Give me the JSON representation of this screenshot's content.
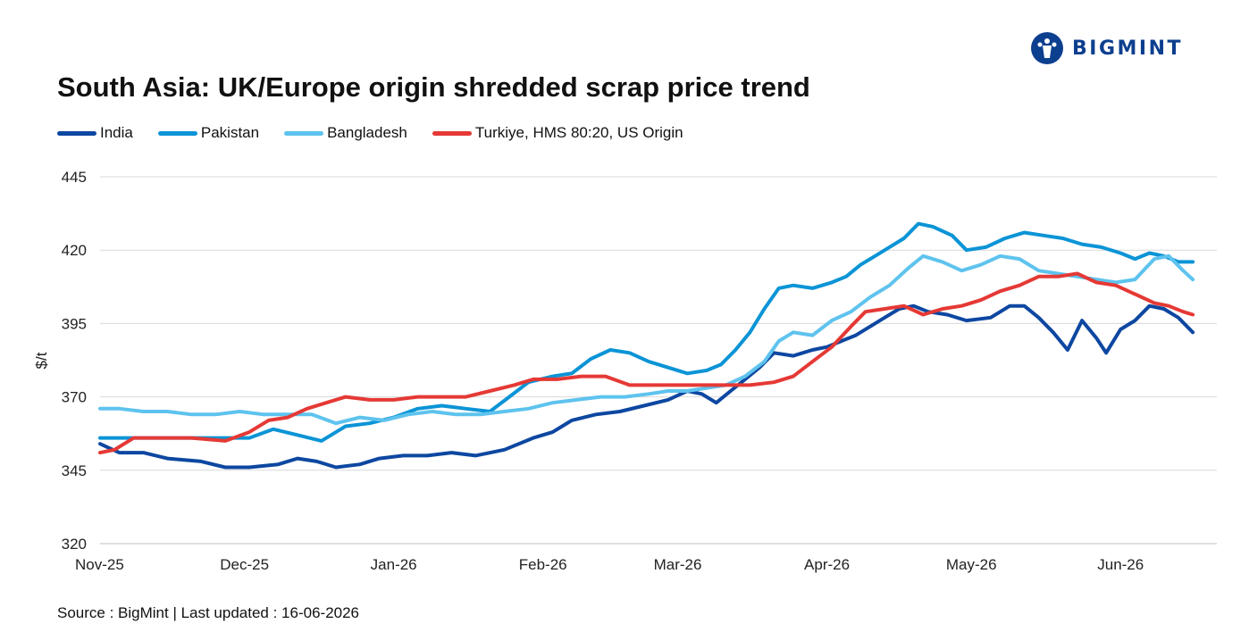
{
  "brand": {
    "logo_text": "BIGMINT",
    "logo_color": "#0d3f8f"
  },
  "source_note": "Source : BigMint | Last updated : 16-06-2026",
  "chart_data": {
    "type": "line",
    "title": "South Asia: UK/Europe origin shredded scrap price trend",
    "xlabel": "",
    "ylabel": "$/t",
    "ylim": [
      320,
      445
    ],
    "yticks": [
      "445",
      "420",
      "395",
      "370",
      "345",
      "320"
    ],
    "xticks": [
      "Nov-25",
      "Dec-25",
      "Jan-26",
      "Feb-26",
      "Mar-26",
      "Apr-26",
      "May-26",
      "Jun-26"
    ],
    "grid": true,
    "legend": "top-left",
    "colors": {
      "India": "#0d47a1",
      "Pakistan": "#0b94d6",
      "Bangladesh": "#5ec3ee",
      "Turkiye": "#e53935"
    },
    "series": [
      {
        "name": "India",
        "color": "#0d47a1",
        "points": [
          [
            "2025-11-01",
            354
          ],
          [
            "2025-11-05",
            351
          ],
          [
            "2025-11-10",
            351
          ],
          [
            "2025-11-15",
            349
          ],
          [
            "2025-11-22",
            348
          ],
          [
            "2025-11-27",
            346
          ],
          [
            "2025-12-02",
            346
          ],
          [
            "2025-12-08",
            347
          ],
          [
            "2025-12-12",
            349
          ],
          [
            "2025-12-16",
            348
          ],
          [
            "2025-12-20",
            346
          ],
          [
            "2025-12-25",
            347
          ],
          [
            "2025-12-29",
            349
          ],
          [
            "2026-01-03",
            350
          ],
          [
            "2026-01-08",
            350
          ],
          [
            "2026-01-13",
            351
          ],
          [
            "2026-01-18",
            350
          ],
          [
            "2026-01-24",
            352
          ],
          [
            "2026-01-30",
            356
          ],
          [
            "2026-02-03",
            358
          ],
          [
            "2026-02-07",
            362
          ],
          [
            "2026-02-12",
            364
          ],
          [
            "2026-02-17",
            365
          ],
          [
            "2026-02-22",
            367
          ],
          [
            "2026-02-27",
            369
          ],
          [
            "2026-03-03",
            372
          ],
          [
            "2026-03-06",
            371
          ],
          [
            "2026-03-09",
            368
          ],
          [
            "2026-03-12",
            372
          ],
          [
            "2026-03-15",
            376
          ],
          [
            "2026-03-18",
            380
          ],
          [
            "2026-03-21",
            385
          ],
          [
            "2026-03-25",
            384
          ],
          [
            "2026-03-29",
            386
          ],
          [
            "2026-04-01",
            387
          ],
          [
            "2026-04-04",
            389
          ],
          [
            "2026-04-07",
            391
          ],
          [
            "2026-04-10",
            394
          ],
          [
            "2026-04-13",
            397
          ],
          [
            "2026-04-16",
            400
          ],
          [
            "2026-04-19",
            401
          ],
          [
            "2026-04-22",
            399
          ],
          [
            "2026-04-26",
            398
          ],
          [
            "2026-04-30",
            396
          ],
          [
            "2026-05-05",
            397
          ],
          [
            "2026-05-09",
            401
          ],
          [
            "2026-05-12",
            401
          ],
          [
            "2026-05-15",
            397
          ],
          [
            "2026-05-18",
            392
          ],
          [
            "2026-05-21",
            386
          ],
          [
            "2026-05-24",
            396
          ],
          [
            "2026-05-27",
            390
          ],
          [
            "2026-05-29",
            385
          ],
          [
            "2026-06-01",
            393
          ],
          [
            "2026-06-04",
            396
          ],
          [
            "2026-06-07",
            401
          ],
          [
            "2026-06-10",
            400
          ],
          [
            "2026-06-13",
            397
          ],
          [
            "2026-06-16",
            392
          ]
        ]
      },
      {
        "name": "Pakistan",
        "color": "#0b94d6",
        "points": [
          [
            "2025-11-01",
            356
          ],
          [
            "2025-11-05",
            356
          ],
          [
            "2025-11-10",
            356
          ],
          [
            "2025-11-15",
            356
          ],
          [
            "2025-11-22",
            356
          ],
          [
            "2025-11-27",
            356
          ],
          [
            "2025-12-02",
            356
          ],
          [
            "2025-12-07",
            359
          ],
          [
            "2025-12-12",
            357
          ],
          [
            "2025-12-17",
            355
          ],
          [
            "2025-12-22",
            360
          ],
          [
            "2025-12-27",
            361
          ],
          [
            "2026-01-01",
            363
          ],
          [
            "2026-01-06",
            366
          ],
          [
            "2026-01-11",
            367
          ],
          [
            "2026-01-16",
            366
          ],
          [
            "2026-01-21",
            365
          ],
          [
            "2026-01-25",
            370
          ],
          [
            "2026-01-29",
            375
          ],
          [
            "2026-02-03",
            377
          ],
          [
            "2026-02-07",
            378
          ],
          [
            "2026-02-11",
            383
          ],
          [
            "2026-02-15",
            386
          ],
          [
            "2026-02-19",
            385
          ],
          [
            "2026-02-23",
            382
          ],
          [
            "2026-02-27",
            380
          ],
          [
            "2026-03-03",
            378
          ],
          [
            "2026-03-07",
            379
          ],
          [
            "2026-03-10",
            381
          ],
          [
            "2026-03-13",
            386
          ],
          [
            "2026-03-16",
            392
          ],
          [
            "2026-03-19",
            400
          ],
          [
            "2026-03-22",
            407
          ],
          [
            "2026-03-25",
            408
          ],
          [
            "2026-03-29",
            407
          ],
          [
            "2026-04-02",
            409
          ],
          [
            "2026-04-05",
            411
          ],
          [
            "2026-04-08",
            415
          ],
          [
            "2026-04-11",
            418
          ],
          [
            "2026-04-14",
            421
          ],
          [
            "2026-04-17",
            424
          ],
          [
            "2026-04-20",
            429
          ],
          [
            "2026-04-23",
            428
          ],
          [
            "2026-04-27",
            425
          ],
          [
            "2026-04-30",
            420
          ],
          [
            "2026-05-04",
            421
          ],
          [
            "2026-05-08",
            424
          ],
          [
            "2026-05-12",
            426
          ],
          [
            "2026-05-16",
            425
          ],
          [
            "2026-05-20",
            424
          ],
          [
            "2026-05-24",
            422
          ],
          [
            "2026-05-28",
            421
          ],
          [
            "2026-06-01",
            419
          ],
          [
            "2026-06-04",
            417
          ],
          [
            "2026-06-07",
            419
          ],
          [
            "2026-06-10",
            418
          ],
          [
            "2026-06-13",
            416
          ],
          [
            "2026-06-16",
            416
          ]
        ]
      },
      {
        "name": "Bangladesh",
        "color": "#5ec3ee",
        "points": [
          [
            "2025-11-01",
            366
          ],
          [
            "2025-11-05",
            366
          ],
          [
            "2025-11-10",
            365
          ],
          [
            "2025-11-15",
            365
          ],
          [
            "2025-11-20",
            364
          ],
          [
            "2025-11-25",
            364
          ],
          [
            "2025-11-30",
            365
          ],
          [
            "2025-12-05",
            364
          ],
          [
            "2025-12-10",
            364
          ],
          [
            "2025-12-15",
            364
          ],
          [
            "2025-12-20",
            361
          ],
          [
            "2025-12-25",
            363
          ],
          [
            "2025-12-30",
            362
          ],
          [
            "2026-01-04",
            364
          ],
          [
            "2026-01-09",
            365
          ],
          [
            "2026-01-14",
            364
          ],
          [
            "2026-01-19",
            364
          ],
          [
            "2026-01-24",
            365
          ],
          [
            "2026-01-29",
            366
          ],
          [
            "2026-02-03",
            368
          ],
          [
            "2026-02-08",
            369
          ],
          [
            "2026-02-13",
            370
          ],
          [
            "2026-02-18",
            370
          ],
          [
            "2026-02-23",
            371
          ],
          [
            "2026-02-27",
            372
          ],
          [
            "2026-03-03",
            372
          ],
          [
            "2026-03-07",
            373
          ],
          [
            "2026-03-11",
            374
          ],
          [
            "2026-03-15",
            377
          ],
          [
            "2026-03-19",
            382
          ],
          [
            "2026-03-22",
            389
          ],
          [
            "2026-03-25",
            392
          ],
          [
            "2026-03-29",
            391
          ],
          [
            "2026-04-02",
            396
          ],
          [
            "2026-04-06",
            399
          ],
          [
            "2026-04-10",
            404
          ],
          [
            "2026-04-14",
            408
          ],
          [
            "2026-04-18",
            414
          ],
          [
            "2026-04-21",
            418
          ],
          [
            "2026-04-25",
            416
          ],
          [
            "2026-04-29",
            413
          ],
          [
            "2026-05-03",
            415
          ],
          [
            "2026-05-07",
            418
          ],
          [
            "2026-05-11",
            417
          ],
          [
            "2026-05-15",
            413
          ],
          [
            "2026-05-19",
            412
          ],
          [
            "2026-05-23",
            411
          ],
          [
            "2026-05-27",
            410
          ],
          [
            "2026-05-31",
            409
          ],
          [
            "2026-06-04",
            410
          ],
          [
            "2026-06-08",
            417
          ],
          [
            "2026-06-11",
            418
          ],
          [
            "2026-06-14",
            413
          ],
          [
            "2026-06-16",
            410
          ]
        ]
      },
      {
        "name": "Turkiye, HMS 80:20, US Origin",
        "color": "#e53935",
        "points": [
          [
            "2025-11-01",
            351
          ],
          [
            "2025-11-04",
            352
          ],
          [
            "2025-11-08",
            356
          ],
          [
            "2025-11-14",
            356
          ],
          [
            "2025-11-20",
            356
          ],
          [
            "2025-11-27",
            355
          ],
          [
            "2025-12-02",
            358
          ],
          [
            "2025-12-06",
            362
          ],
          [
            "2025-12-10",
            363
          ],
          [
            "2025-12-14",
            366
          ],
          [
            "2025-12-18",
            368
          ],
          [
            "2025-12-22",
            370
          ],
          [
            "2025-12-27",
            369
          ],
          [
            "2026-01-01",
            369
          ],
          [
            "2026-01-06",
            370
          ],
          [
            "2026-01-11",
            370
          ],
          [
            "2026-01-16",
            370
          ],
          [
            "2026-01-21",
            372
          ],
          [
            "2026-01-26",
            374
          ],
          [
            "2026-01-30",
            376
          ],
          [
            "2026-02-04",
            376
          ],
          [
            "2026-02-09",
            377
          ],
          [
            "2026-02-14",
            377
          ],
          [
            "2026-02-19",
            374
          ],
          [
            "2026-02-24",
            374
          ],
          [
            "2026-03-01",
            374
          ],
          [
            "2026-03-06",
            374
          ],
          [
            "2026-03-11",
            374
          ],
          [
            "2026-03-16",
            374
          ],
          [
            "2026-03-21",
            375
          ],
          [
            "2026-03-25",
            377
          ],
          [
            "2026-03-29",
            382
          ],
          [
            "2026-04-02",
            387
          ],
          [
            "2026-04-06",
            394
          ],
          [
            "2026-04-09",
            399
          ],
          [
            "2026-04-13",
            400
          ],
          [
            "2026-04-17",
            401
          ],
          [
            "2026-04-21",
            398
          ],
          [
            "2026-04-25",
            400
          ],
          [
            "2026-04-29",
            401
          ],
          [
            "2026-05-03",
            403
          ],
          [
            "2026-05-07",
            406
          ],
          [
            "2026-05-11",
            408
          ],
          [
            "2026-05-15",
            411
          ],
          [
            "2026-05-19",
            411
          ],
          [
            "2026-05-23",
            412
          ],
          [
            "2026-05-27",
            409
          ],
          [
            "2026-05-31",
            408
          ],
          [
            "2026-06-04",
            405
          ],
          [
            "2026-06-08",
            402
          ],
          [
            "2026-06-11",
            401
          ],
          [
            "2026-06-14",
            399
          ],
          [
            "2026-06-16",
            398
          ]
        ]
      }
    ]
  }
}
